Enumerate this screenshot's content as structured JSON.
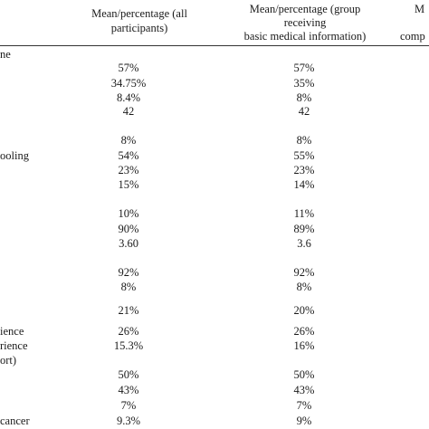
{
  "header": {
    "col1": [
      "Mean/percentage (all",
      "participants)"
    ],
    "col2": [
      "Mean/percentage (group",
      "receiving",
      "basic medical information)"
    ],
    "col3": [
      "M",
      "comp"
    ]
  },
  "rows": [
    {
      "label": "ne",
      "c1": "",
      "c2": ""
    },
    {
      "label": "",
      "c1": "57%",
      "c2": "57%"
    },
    {
      "label": "",
      "c1": "34.75%",
      "c2": "35%"
    },
    {
      "label": "",
      "c1": "8.4%",
      "c2": "8%"
    },
    {
      "label": "",
      "c1": "42",
      "c2": "42"
    },
    {
      "label": "",
      "c1": "8%",
      "c2": "8%"
    },
    {
      "label": "ooling",
      "c1": "54%",
      "c2": "55%"
    },
    {
      "label": "",
      "c1": "23%",
      "c2": "23%"
    },
    {
      "label": "",
      "c1": "15%",
      "c2": "14%"
    },
    {
      "label": "",
      "c1": "10%",
      "c2": "11%"
    },
    {
      "label": "",
      "c1": "90%",
      "c2": "89%"
    },
    {
      "label": "",
      "c1": "3.60",
      "c2": "3.6"
    },
    {
      "label": "",
      "c1": "92%",
      "c2": "92%"
    },
    {
      "label": "",
      "c1": "8%",
      "c2": "8%"
    },
    {
      "label": "",
      "c1": "21%",
      "c2": "20%"
    },
    {
      "label": "ience",
      "c1": "26%",
      "c2": "26%"
    },
    {
      "label": "rience",
      "c1": "15.3%",
      "c2": "16%"
    },
    {
      "label": "ort)",
      "c1": "",
      "c2": ""
    },
    {
      "label": "",
      "c1": "50%",
      "c2": "50%"
    },
    {
      "label": "",
      "c1": "43%",
      "c2": "43%"
    },
    {
      "label": "",
      "c1": "7%",
      "c2": "7%"
    },
    {
      "label": "cancer",
      "c1": "9.3%",
      "c2": "9%"
    }
  ]
}
